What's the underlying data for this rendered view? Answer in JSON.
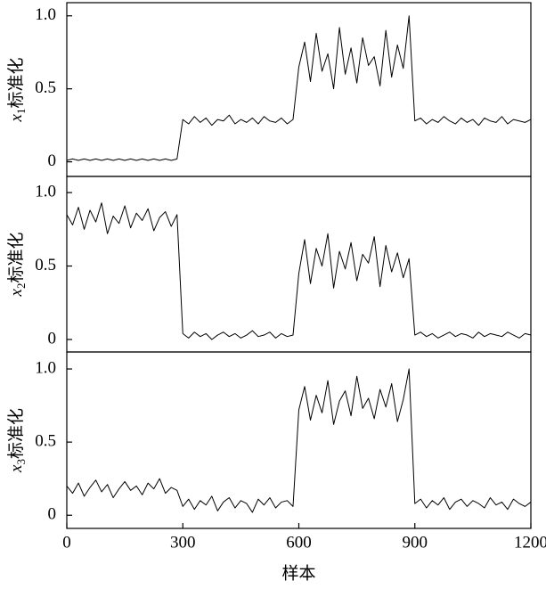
{
  "chart_data": [
    {
      "type": "line",
      "ylabel_var": "x",
      "ylabel_sub": "1",
      "ylabel": "标准化",
      "color": "#000000",
      "x": [
        0,
        15,
        30,
        45,
        60,
        75,
        90,
        105,
        120,
        135,
        150,
        165,
        180,
        195,
        210,
        225,
        240,
        255,
        270,
        285,
        300,
        315,
        330,
        345,
        360,
        375,
        390,
        405,
        420,
        435,
        450,
        465,
        480,
        495,
        510,
        525,
        540,
        555,
        570,
        585,
        600,
        615,
        630,
        645,
        660,
        675,
        690,
        705,
        720,
        735,
        750,
        765,
        780,
        795,
        810,
        825,
        840,
        855,
        870,
        885,
        900,
        915,
        930,
        945,
        960,
        975,
        990,
        1005,
        1020,
        1035,
        1050,
        1065,
        1080,
        1095,
        1110,
        1125,
        1140,
        1155,
        1170,
        1185,
        1200
      ],
      "values": [
        0.01,
        0.02,
        0.01,
        0.02,
        0.01,
        0.02,
        0.01,
        0.02,
        0.01,
        0.02,
        0.01,
        0.02,
        0.01,
        0.02,
        0.01,
        0.02,
        0.01,
        0.02,
        0.01,
        0.02,
        0.29,
        0.26,
        0.31,
        0.27,
        0.3,
        0.25,
        0.29,
        0.28,
        0.32,
        0.26,
        0.29,
        0.27,
        0.3,
        0.26,
        0.31,
        0.28,
        0.27,
        0.3,
        0.26,
        0.29,
        0.65,
        0.82,
        0.55,
        0.88,
        0.62,
        0.74,
        0.5,
        0.92,
        0.6,
        0.78,
        0.54,
        0.85,
        0.66,
        0.72,
        0.52,
        0.9,
        0.58,
        0.8,
        0.64,
        1.0,
        0.28,
        0.3,
        0.26,
        0.29,
        0.27,
        0.31,
        0.28,
        0.26,
        0.3,
        0.27,
        0.29,
        0.25,
        0.3,
        0.28,
        0.27,
        0.31,
        0.26,
        0.29,
        0.28,
        0.27,
        0.29
      ],
      "xlim": [
        0,
        1200
      ],
      "ylim": [
        -0.1,
        1.09
      ],
      "yticks": [
        0,
        0.5,
        {
          "value": 1,
          "label": "1.0"
        }
      ]
    },
    {
      "type": "line",
      "ylabel_var": "x",
      "ylabel_sub": "2",
      "ylabel": "标准化",
      "color": "#000000",
      "x": [
        0,
        15,
        30,
        45,
        60,
        75,
        90,
        105,
        120,
        135,
        150,
        165,
        180,
        195,
        210,
        225,
        240,
        255,
        270,
        285,
        300,
        315,
        330,
        345,
        360,
        375,
        390,
        405,
        420,
        435,
        450,
        465,
        480,
        495,
        510,
        525,
        540,
        555,
        570,
        585,
        600,
        615,
        630,
        645,
        660,
        675,
        690,
        705,
        720,
        735,
        750,
        765,
        780,
        795,
        810,
        825,
        840,
        855,
        870,
        885,
        900,
        915,
        930,
        945,
        960,
        975,
        990,
        1005,
        1020,
        1035,
        1050,
        1065,
        1080,
        1095,
        1110,
        1125,
        1140,
        1155,
        1170,
        1185,
        1200
      ],
      "values": [
        0.85,
        0.78,
        0.9,
        0.75,
        0.88,
        0.8,
        0.93,
        0.72,
        0.84,
        0.79,
        0.91,
        0.76,
        0.86,
        0.81,
        0.89,
        0.74,
        0.83,
        0.87,
        0.77,
        0.85,
        0.04,
        0.01,
        0.05,
        0.02,
        0.04,
        0.0,
        0.03,
        0.05,
        0.02,
        0.04,
        0.01,
        0.03,
        0.06,
        0.02,
        0.03,
        0.05,
        0.01,
        0.04,
        0.02,
        0.03,
        0.45,
        0.68,
        0.38,
        0.62,
        0.5,
        0.72,
        0.35,
        0.6,
        0.48,
        0.66,
        0.4,
        0.58,
        0.52,
        0.7,
        0.36,
        0.64,
        0.46,
        0.59,
        0.42,
        0.55,
        0.03,
        0.05,
        0.02,
        0.04,
        0.01,
        0.03,
        0.05,
        0.02,
        0.04,
        0.03,
        0.01,
        0.05,
        0.02,
        0.04,
        0.03,
        0.02,
        0.05,
        0.03,
        0.01,
        0.04,
        0.03
      ],
      "xlim": [
        0,
        1200
      ],
      "ylim": [
        -0.085,
        1.11
      ],
      "yticks": [
        0,
        0.5,
        {
          "value": 1,
          "label": "1.0"
        }
      ]
    },
    {
      "type": "line",
      "ylabel_var": "x",
      "ylabel_sub": "3",
      "ylabel": "标准化",
      "color": "#000000",
      "xlabel": "样本",
      "x": [
        0,
        15,
        30,
        45,
        60,
        75,
        90,
        105,
        120,
        135,
        150,
        165,
        180,
        195,
        210,
        225,
        240,
        255,
        270,
        285,
        300,
        315,
        330,
        345,
        360,
        375,
        390,
        405,
        420,
        435,
        450,
        465,
        480,
        495,
        510,
        525,
        540,
        555,
        570,
        585,
        600,
        615,
        630,
        645,
        660,
        675,
        690,
        705,
        720,
        735,
        750,
        765,
        780,
        795,
        810,
        825,
        840,
        855,
        870,
        885,
        900,
        915,
        930,
        945,
        960,
        975,
        990,
        1005,
        1020,
        1035,
        1050,
        1065,
        1080,
        1095,
        1110,
        1125,
        1140,
        1155,
        1170,
        1185,
        1200
      ],
      "values": [
        0.2,
        0.15,
        0.22,
        0.13,
        0.19,
        0.24,
        0.16,
        0.21,
        0.12,
        0.18,
        0.23,
        0.17,
        0.2,
        0.14,
        0.22,
        0.18,
        0.25,
        0.15,
        0.19,
        0.17,
        0.06,
        0.11,
        0.04,
        0.1,
        0.07,
        0.13,
        0.03,
        0.09,
        0.12,
        0.05,
        0.1,
        0.08,
        0.02,
        0.11,
        0.07,
        0.12,
        0.05,
        0.09,
        0.1,
        0.06,
        0.72,
        0.88,
        0.65,
        0.82,
        0.7,
        0.92,
        0.62,
        0.78,
        0.85,
        0.68,
        0.95,
        0.73,
        0.8,
        0.66,
        0.86,
        0.74,
        0.9,
        0.64,
        0.79,
        1.0,
        0.08,
        0.11,
        0.05,
        0.1,
        0.07,
        0.12,
        0.04,
        0.09,
        0.11,
        0.06,
        0.1,
        0.08,
        0.05,
        0.12,
        0.07,
        0.09,
        0.04,
        0.11,
        0.08,
        0.06,
        0.09
      ],
      "xlim": [
        0,
        1200
      ],
      "ylim": [
        -0.09,
        1.116
      ],
      "yticks": [
        0,
        0.5,
        {
          "value": 1,
          "label": "1.0"
        }
      ],
      "xticks": [
        0,
        300,
        600,
        900,
        1200
      ]
    }
  ]
}
